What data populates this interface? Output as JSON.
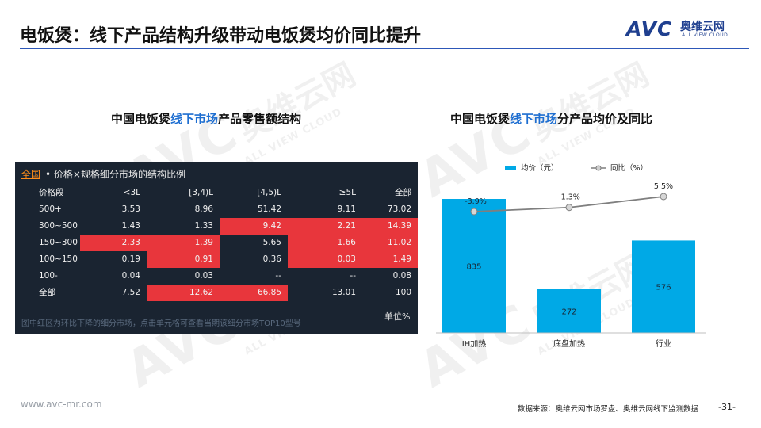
{
  "title": "电饭煲：线下产品结构升级带动电饭煲均价同比提升",
  "logo": {
    "mark": "AVC",
    "cn": "奥维云网",
    "en": "ALL VIEW CLOUD"
  },
  "left_panel": {
    "title_pre": "中国电饭煲",
    "title_hl": "线下市场",
    "title_post": "产品零售额结构"
  },
  "right_panel": {
    "title_pre": "中国电饭煲",
    "title_hl": "线下市场",
    "title_post": "分产品均价及同比"
  },
  "table": {
    "tab": "全国",
    "caption": "• 价格×规格细分市场的结构比例",
    "headers": [
      "价格段",
      "<3L",
      "[3,4)L",
      "[4,5)L",
      "≥5L",
      "全部"
    ],
    "rows": [
      {
        "label": "500+",
        "values": [
          "3.53",
          "8.96",
          "51.42",
          "9.11",
          "73.02"
        ],
        "hot": [
          false,
          false,
          false,
          false,
          false
        ]
      },
      {
        "label": "300~500",
        "values": [
          "1.43",
          "1.33",
          "9.42",
          "2.21",
          "14.39"
        ],
        "hot": [
          false,
          false,
          true,
          true,
          true
        ]
      },
      {
        "label": "150~300",
        "values": [
          "2.33",
          "1.39",
          "5.65",
          "1.66",
          "11.02"
        ],
        "hot": [
          true,
          true,
          false,
          true,
          true
        ]
      },
      {
        "label": "100~150",
        "values": [
          "0.19",
          "0.91",
          "0.36",
          "0.03",
          "1.49"
        ],
        "hot": [
          false,
          true,
          false,
          true,
          true
        ]
      },
      {
        "label": "100-",
        "values": [
          "0.04",
          "0.03",
          "--",
          "--",
          "0.08"
        ],
        "hot": [
          false,
          false,
          false,
          false,
          false
        ]
      },
      {
        "label": "全部",
        "values": [
          "7.52",
          "12.62",
          "66.85",
          "13.01",
          "100"
        ],
        "hot": [
          false,
          true,
          true,
          false,
          false
        ]
      }
    ],
    "note": "图中红区为环比下降的细分市场，点击单元格可查看当期该细分市场TOP10型号",
    "unit": "单位%",
    "colors": {
      "bg": "#1a2431",
      "hot": "#e8363c"
    }
  },
  "chart_data": {
    "type": "bar",
    "categories": [
      "IH加热",
      "底盘加热",
      "行业"
    ],
    "series": [
      {
        "name": "均价（元）",
        "type": "bar",
        "values": [
          835,
          272,
          576
        ],
        "labels": [
          "835",
          "272",
          "576"
        ],
        "color": "#00a9e6"
      },
      {
        "name": "同比（%）",
        "type": "line",
        "values": [
          -3.9,
          -1.3,
          5.5
        ],
        "labels": [
          "-3.9%",
          "-1.3%",
          "5.5%"
        ],
        "color": "#7f7f7f"
      }
    ],
    "legend": "top",
    "grid": false
  },
  "footer": {
    "url": "www.avc-mr.com",
    "source": "数据来源：奥维云网市场罗盘、奥维云网线下监测数据",
    "page": "-31-"
  }
}
